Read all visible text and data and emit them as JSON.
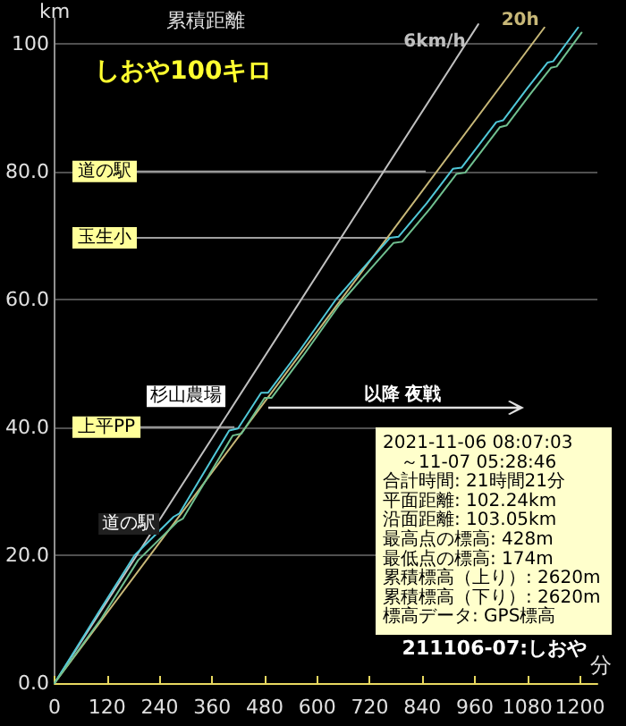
{
  "chart_data": {
    "type": "line",
    "title": "累積距離",
    "subtitle": "しおや100キロ",
    "xlabel": "分",
    "ylabel": "km",
    "xlim": [
      0,
      1240
    ],
    "xticks": [
      0,
      120,
      240,
      360,
      480,
      600,
      720,
      840,
      960,
      1080,
      1200
    ],
    "ylim": [
      0,
      104
    ],
    "yticks": [
      {
        "value": 0,
        "label": "0.0"
      },
      {
        "value": 20,
        "label": "20.0"
      },
      {
        "value": 40,
        "label": "40.0"
      },
      {
        "value": 60,
        "label": "60.0"
      },
      {
        "value": 80,
        "label": "80.0"
      },
      100
    ],
    "grid": "y",
    "legend": false,
    "marker": "none",
    "line_style": "solid",
    "series": [
      {
        "name": "6km/h",
        "color": "#c0c0c0",
        "x": [
          0,
          968
        ],
        "values": [
          0,
          103
        ]
      },
      {
        "name": "20h",
        "color": "#c8b878",
        "x": [
          0,
          1119
        ],
        "values": [
          0,
          102.5
        ]
      },
      {
        "color": "#50c8d8",
        "x": [
          0,
          100,
          183,
          272,
          285,
          399,
          419,
          472,
          488,
          560,
          643,
          700,
          766,
          786,
          850,
          910,
          930,
          1009,
          1025,
          1080,
          1126,
          1139,
          1196
        ],
        "values": [
          0,
          11,
          20,
          26,
          26.5,
          39.5,
          39.8,
          45.4,
          45.4,
          52,
          60,
          64.5,
          69.6,
          69.8,
          75,
          80.4,
          80.6,
          87.7,
          88,
          93,
          97,
          97.2,
          102.5
        ]
      },
      {
        "color": "#70c090",
        "x": [
          0,
          108,
          191,
          280,
          293,
          407,
          427,
          480,
          496,
          568,
          651,
          708,
          774,
          794,
          858,
          918,
          938,
          1017,
          1033,
          1088,
          1134,
          1147,
          1204
        ],
        "values": [
          0,
          10.2,
          19.2,
          25.2,
          25.7,
          38.7,
          39,
          44.6,
          44.6,
          51.2,
          59.2,
          63.7,
          68.8,
          69,
          74.2,
          79.6,
          79.8,
          86.9,
          87.2,
          92.2,
          96.2,
          96.4,
          101.7
        ]
      }
    ],
    "annotations": [
      {
        "text": "道の駅",
        "x": 848,
        "y": 80
      },
      {
        "text": "玉生小",
        "x": 766,
        "y": 69.6
      },
      {
        "text": "上平PP",
        "x": 411,
        "y": 40
      },
      {
        "text": "杉山農場",
        "x": 472,
        "y": 45.4
      },
      {
        "text": "道の駅",
        "x": 272,
        "y": 26
      },
      "以降 夜戦",
      "2021-11-06 08:07:03",
      "～11-07 05:28:46",
      "合計時間: 21時間21分",
      "平面距離: 102.24km",
      "沿面距離: 103.05km",
      "最高点の標高: 428m",
      "最低点の標高: 174m",
      "累積標高（上り）: 2620m",
      "累積標高（下り）: 2620m",
      "標高データ: GPS標高",
      "211106-07:しおや"
    ]
  }
}
